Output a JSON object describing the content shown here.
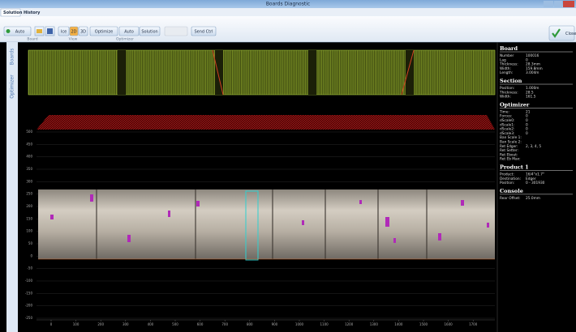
{
  "window": {
    "title": "Boards Diagnostic"
  },
  "menu_tabs": [
    "Solution",
    "History"
  ],
  "toolbar": {
    "groups": [
      {
        "label": "Board",
        "buttons": [
          "Auto"
        ]
      },
      {
        "label": "View",
        "buttons": [
          "Ice",
          "2D",
          "3D"
        ]
      },
      {
        "label": "Optimizer",
        "buttons": [
          "Optimize",
          "Auto",
          "Solution"
        ]
      }
    ],
    "send": "Send Ctrl",
    "close": "Close"
  },
  "side_tabs": [
    "Boards",
    "Optimizer"
  ],
  "panel": [
    {
      "title": "Board",
      "rows": [
        [
          "Number",
          "100016"
        ],
        [
          "Lag",
          "0"
        ],
        [
          "Thickness:",
          "28.3mm"
        ],
        [
          "Width:",
          "159.8mm"
        ],
        [
          "Length:",
          "3.004m"
        ]
      ]
    },
    {
      "title": "Section",
      "rows": [
        [
          "Position:",
          "1.000m"
        ],
        [
          "Thickness:",
          "28.5"
        ],
        [
          "Width:",
          "161.5"
        ]
      ]
    },
    {
      "title": "Optimizer",
      "rows": [
        [
          "Time:",
          "21"
        ],
        [
          "Forces:",
          "0"
        ],
        [
          "dScale0:",
          "0"
        ],
        [
          "dScale1:",
          "0"
        ],
        [
          "dScale2:",
          "0"
        ],
        [
          "dScale3:",
          "0"
        ],
        [
          "Ban Scale 1:",
          ""
        ],
        [
          "Ban Scale 2:",
          ""
        ],
        [
          "Ret Edger:",
          "2, 3, 4, 5"
        ],
        [
          "Ret Setter:",
          ""
        ],
        [
          "Ret Ebout:",
          ""
        ],
        [
          "Ret Eb Max:",
          ""
        ]
      ]
    },
    {
      "title": "Product 1",
      "rows": [
        [
          "Product:",
          "16/4\"x1.7\""
        ],
        [
          "Destination:",
          "Edger"
        ],
        [
          "Position:",
          "0 - 301930"
        ]
      ]
    },
    {
      "title": "Console",
      "rows": [
        [
          "Rear Offset:",
          "25.0mm"
        ]
      ]
    }
  ],
  "plot": {
    "yticks": [
      500,
      450,
      400,
      350,
      300,
      250,
      200,
      150,
      100,
      50,
      0,
      -50,
      -100,
      -150,
      -200,
      -250
    ],
    "xticks": [
      0,
      100,
      200,
      300,
      400,
      500,
      600,
      700,
      800,
      900,
      1000,
      1100,
      1200,
      1300,
      1400,
      1500,
      1600,
      1700
    ]
  }
}
